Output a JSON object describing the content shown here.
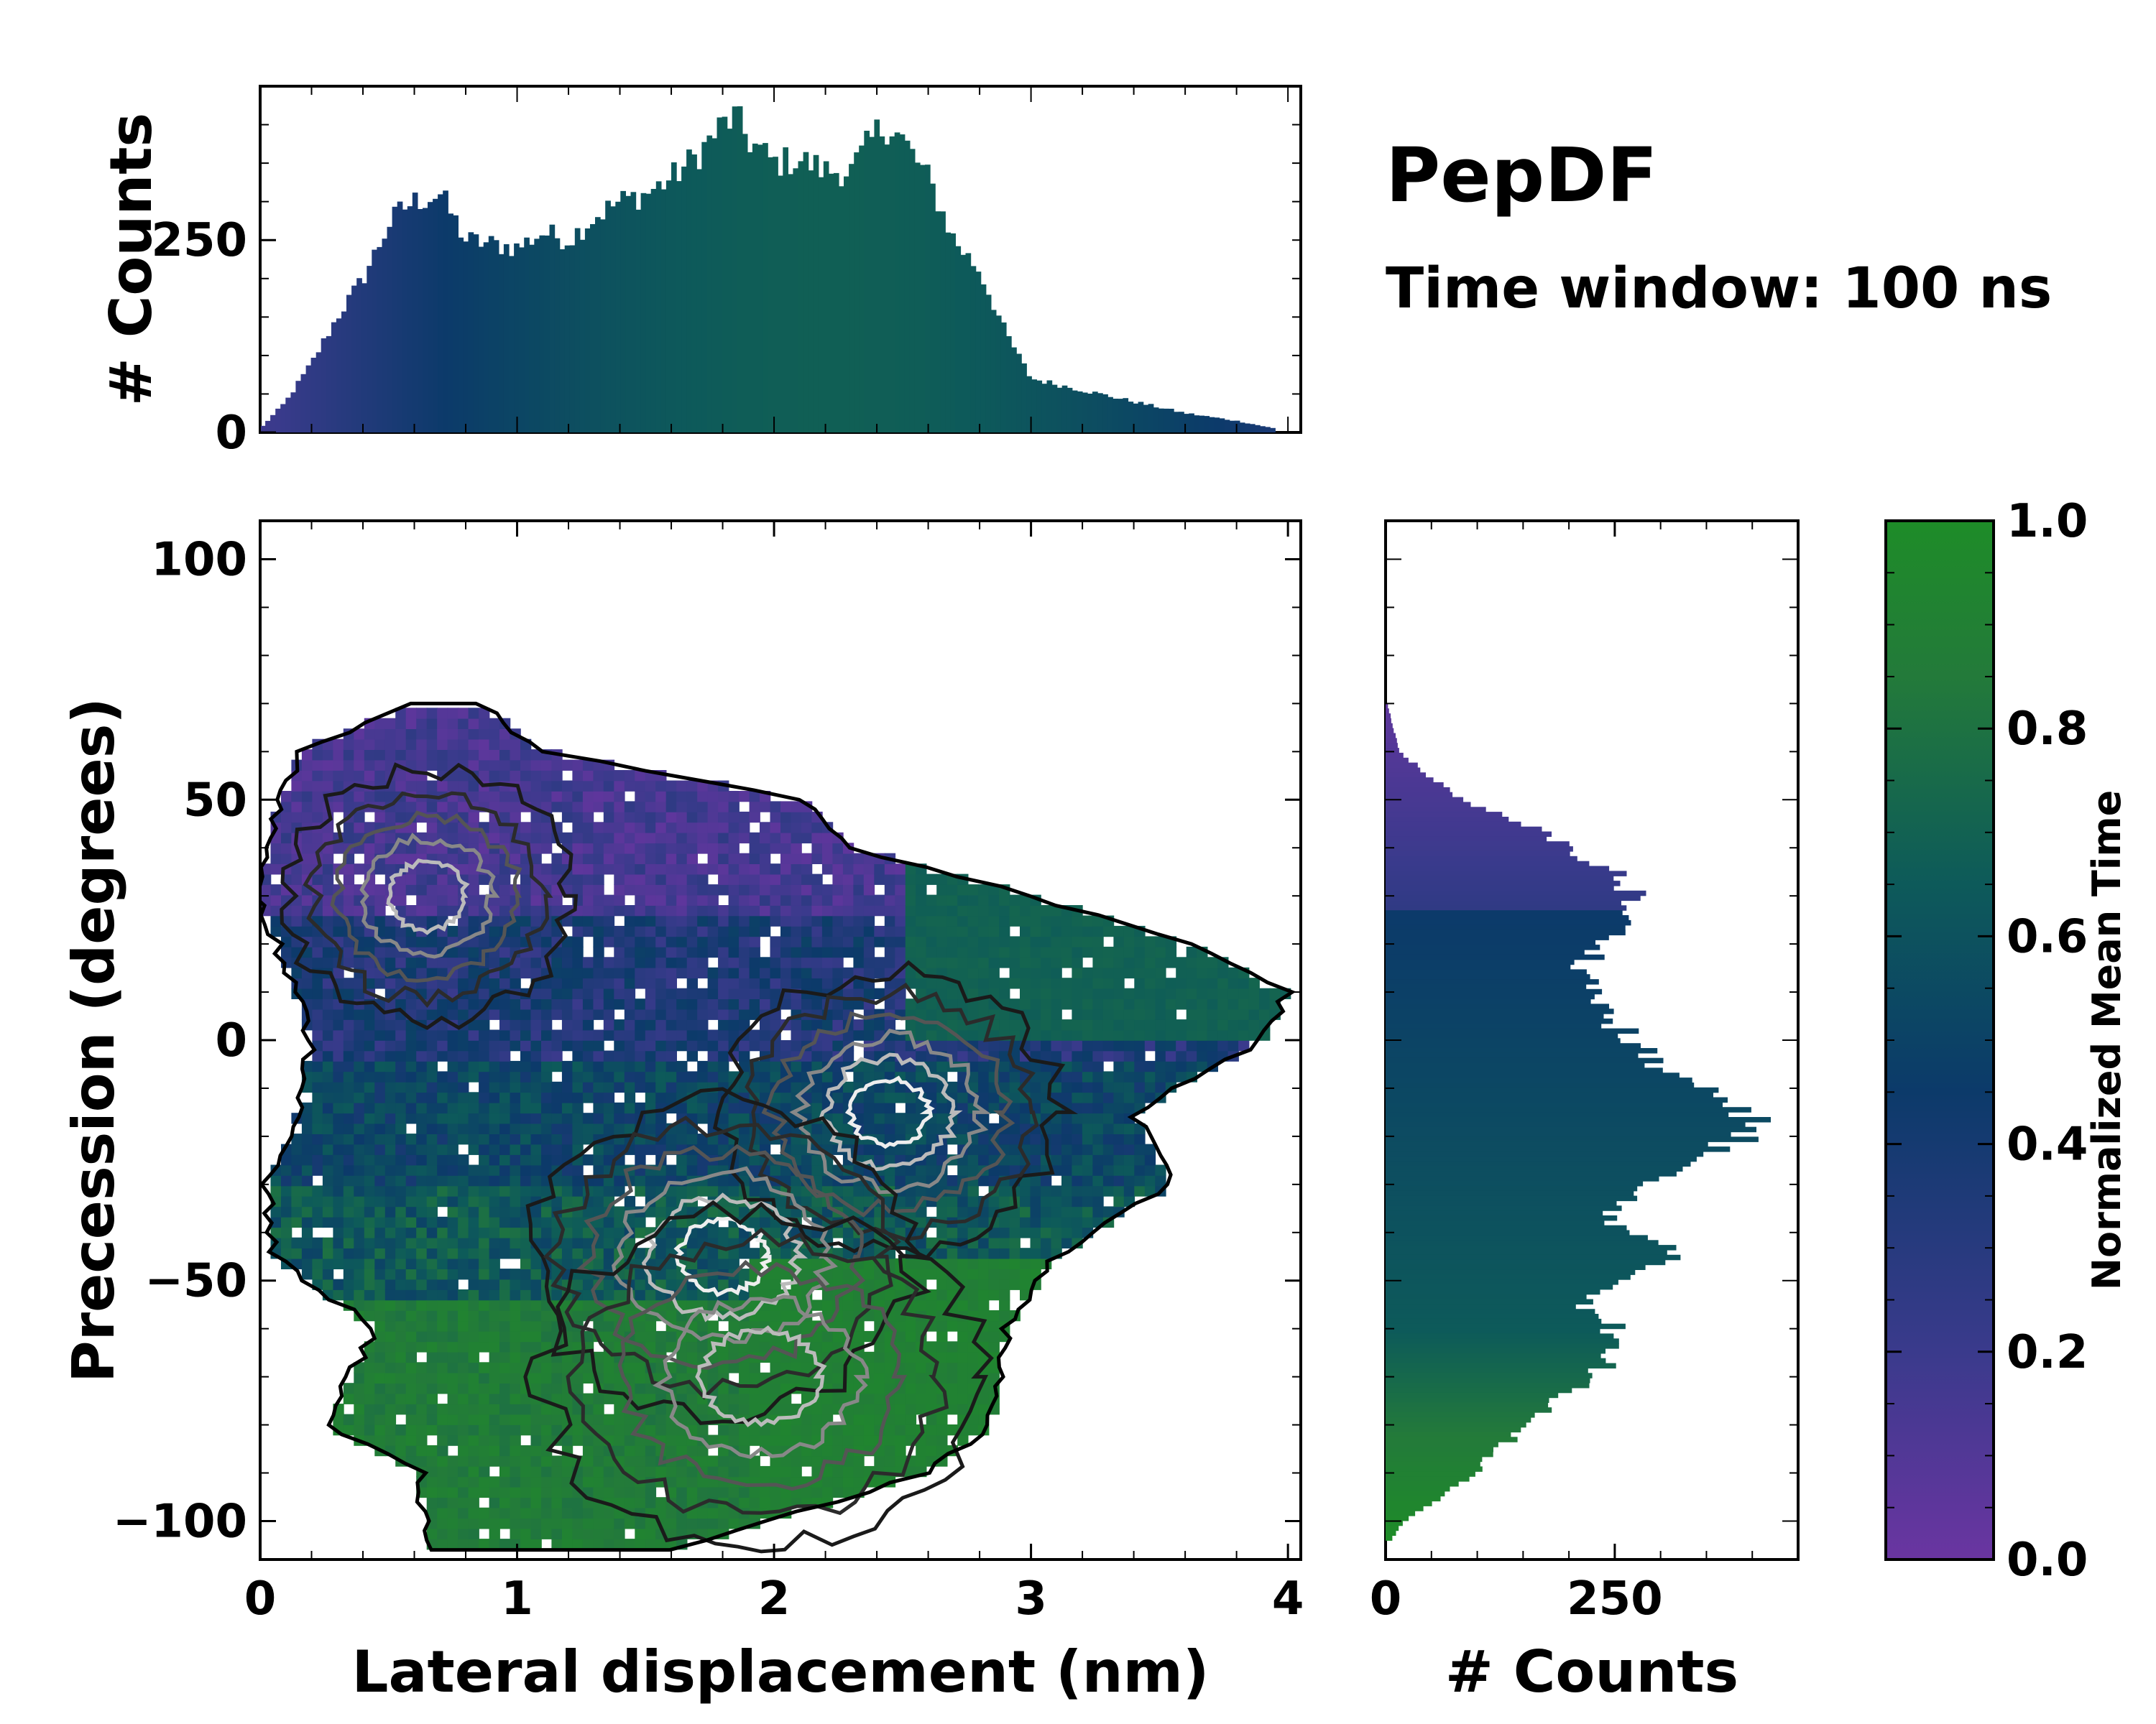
{
  "figure": {
    "title": "PepDF",
    "subtitle": "Time window: 100 ns"
  },
  "chart_data": [
    {
      "id": "top_hist",
      "type": "bar",
      "description_axis": "x histogram of lateral displacement",
      "ylabel": "# Counts",
      "xlim": [
        0,
        4.05
      ],
      "ylim": [
        0,
        450
      ],
      "yticks": [
        0,
        250
      ],
      "x_bin_centers_nm": [
        0.0,
        0.1,
        0.2,
        0.3,
        0.4,
        0.5,
        0.55,
        0.6,
        0.7,
        0.8,
        0.9,
        1.0,
        1.1,
        1.2,
        1.3,
        1.4,
        1.5,
        1.6,
        1.7,
        1.8,
        1.85,
        1.9,
        2.0,
        2.1,
        2.2,
        2.3,
        2.4,
        2.45,
        2.5,
        2.6,
        2.7,
        2.8,
        2.9,
        3.0,
        3.2,
        3.4,
        3.6,
        3.8,
        3.95
      ],
      "counts": [
        5,
        40,
        90,
        150,
        200,
        270,
        290,
        300,
        310,
        250,
        245,
        240,
        260,
        250,
        280,
        300,
        310,
        330,
        360,
        400,
        410,
        380,
        350,
        355,
        340,
        340,
        390,
        400,
        380,
        330,
        250,
        210,
        130,
        70,
        55,
        40,
        25,
        15,
        5
      ]
    },
    {
      "id": "heatmap",
      "type": "heatmap",
      "xlabel": "Lateral displacement (nm)",
      "ylabel": "Precession (degrees)",
      "xlim": [
        0,
        4.05
      ],
      "ylim": [
        -108,
        108
      ],
      "xticks": [
        0,
        1,
        2,
        3,
        4
      ],
      "yticks": [
        -100,
        -50,
        0,
        50,
        100
      ],
      "color_quantity": "Normalized Mean Time",
      "note": "2D histogram colored by normalized mean time with density contours",
      "density_peaks": [
        {
          "x": 0.65,
          "y": 30,
          "relative_density": 0.6
        },
        {
          "x": 2.45,
          "y": -15,
          "relative_density": 1.0
        },
        {
          "x": 1.8,
          "y": -45,
          "relative_density": 0.85
        },
        {
          "x": 1.95,
          "y": -70,
          "relative_density": 0.5
        }
      ]
    },
    {
      "id": "right_hist",
      "type": "bar",
      "description_axis": "y histogram of precession",
      "xlabel": "# Counts",
      "xlim": [
        0,
        450
      ],
      "xticks": [
        0,
        250
      ],
      "y_bin_centers_deg": [
        70,
        60,
        50,
        45,
        40,
        35,
        30,
        25,
        20,
        15,
        10,
        5,
        0,
        -5,
        -10,
        -15,
        -18,
        -20,
        -25,
        -30,
        -35,
        -40,
        -45,
        -50,
        -55,
        -60,
        -65,
        -70,
        -75,
        -80,
        -85,
        -90,
        -95,
        -100,
        -104
      ],
      "counts": [
        2,
        15,
        80,
        150,
        200,
        250,
        270,
        260,
        240,
        215,
        230,
        240,
        270,
        290,
        350,
        380,
        410,
        400,
        330,
        280,
        250,
        260,
        320,
        260,
        220,
        250,
        240,
        235,
        190,
        160,
        120,
        100,
        60,
        20,
        5
      ]
    },
    {
      "id": "colorbar",
      "type": "colorbar",
      "label": "Normalized Mean Time",
      "range": [
        0.0,
        1.0
      ],
      "ticks": [
        "0.0",
        "0.2",
        "0.4",
        "0.6",
        "0.8",
        "1.0"
      ],
      "colors": [
        "#6a35a1",
        "#3a3a8c",
        "#0c3a6a",
        "#0d5a5a",
        "#237a3a",
        "#1e8c28"
      ]
    }
  ]
}
